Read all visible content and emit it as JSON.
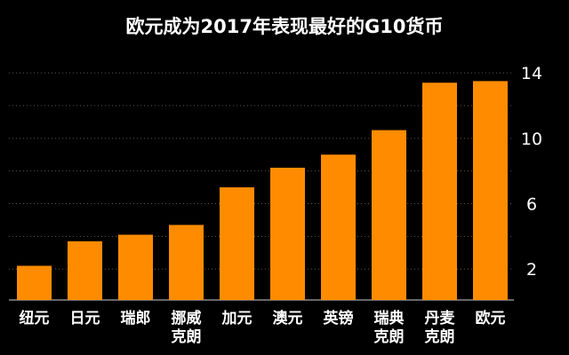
{
  "chart_data": {
    "type": "bar",
    "title": "欧元成为2017年表现最好的G10货币",
    "categories": [
      [
        "纽元"
      ],
      [
        "日元"
      ],
      [
        "瑞郎"
      ],
      [
        "挪威",
        "克朗"
      ],
      [
        "加元"
      ],
      [
        "澳元"
      ],
      [
        "英镑"
      ],
      [
        "瑞典",
        "克朗"
      ],
      [
        "丹麦",
        "克朗"
      ],
      [
        "欧元"
      ]
    ],
    "values": [
      2.2,
      3.7,
      4.1,
      4.7,
      7.0,
      8.2,
      9.0,
      10.5,
      13.4,
      13.5
    ],
    "ylim": [
      0,
      14
    ],
    "yticks": [
      2,
      6,
      10,
      14
    ],
    "ytick_labels": [
      "2",
      "6",
      "10",
      "14"
    ],
    "grid": true,
    "y_axis_side": "right",
    "colors": {
      "bar": "#ff8c00",
      "background": "#000000",
      "text": "#ffffff",
      "grid": "#5a5a5a"
    }
  }
}
